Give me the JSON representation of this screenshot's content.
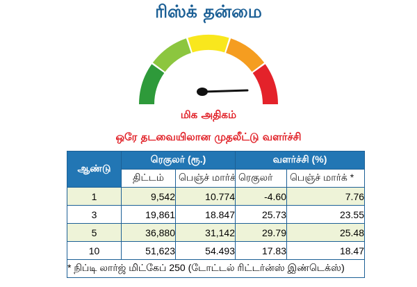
{
  "title": "ரிஸ்க் தன்மை",
  "gauge": {
    "segment_colors": [
      "#2e9a3a",
      "#8cc63f",
      "#f9e71d",
      "#f59d20",
      "#e4222a"
    ],
    "needle_color": "#111111",
    "level": "மிக அதிகம்"
  },
  "subtitle": "ஒரே தடவையிலான முதலீட்டு வளர்ச்சி",
  "table": {
    "year_header": "ஆண்டு",
    "regular_group": "ரெகுலர் (ரூ.)",
    "growth_group": "வளர்ச்சி (%)",
    "sub_headers": [
      "திட்டம்",
      "பெஞ்ச் மார்க்",
      "ரெகுலர்",
      "பெஞ்ச் மார்க் *"
    ],
    "rows": [
      {
        "year": "1",
        "scheme": "9,542",
        "benchmark": "10.774",
        "growth_regular": "-4.60",
        "growth_benchmark": "7.76"
      },
      {
        "year": "3",
        "scheme": "19,861",
        "benchmark": "18.847",
        "growth_regular": "25.73",
        "growth_benchmark": "23.55"
      },
      {
        "year": "5",
        "scheme": "36,880",
        "benchmark": "31,142",
        "growth_regular": "29.79",
        "growth_benchmark": "25.48"
      },
      {
        "year": "10",
        "scheme": "51,623",
        "benchmark": "54.493",
        "growth_regular": "17.83",
        "growth_benchmark": "18.47"
      }
    ],
    "footnote": "* நிப்டி லார்ஜ் மிட்கேப் 250 (டோட்டல் ரிட்டர்ன்ஸ் இண்டெக்ஸ்)"
  },
  "colors": {
    "title": "#1b5f95",
    "accent_red": "#e01b22",
    "header_blue": "#2276b4",
    "row_tint": "#eef3d8"
  }
}
